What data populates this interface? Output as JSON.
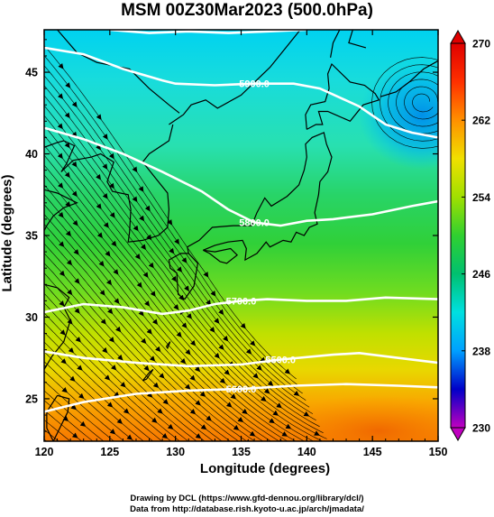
{
  "title": "MSM 00Z30Mar2023 (500.0hPa)",
  "x_axis": {
    "label": "Longitude (degrees)",
    "ticks": [
      "120",
      "125",
      "130",
      "135",
      "140",
      "145",
      "150"
    ],
    "range": [
      120,
      150
    ]
  },
  "y_axis": {
    "label": "Latitude  (degrees)",
    "ticks": [
      "25",
      "30",
      "35",
      "40",
      "45"
    ],
    "range": [
      22.4,
      47.6
    ]
  },
  "colorbar": {
    "ticks": [
      "230",
      "238",
      "246",
      "254",
      "262",
      "270"
    ],
    "range": [
      230,
      270
    ],
    "colors": [
      "#c000c0",
      "#0000c8",
      "#00a0ff",
      "#00e0e0",
      "#00c070",
      "#30d030",
      "#a0e000",
      "#f0e000",
      "#ff9000",
      "#ff3000",
      "#e00000"
    ]
  },
  "contours": [
    {
      "label": "5500.0",
      "lon": [
        120,
        123,
        127,
        131,
        135,
        138,
        142,
        144,
        146,
        150
      ],
      "lat": [
        27.9,
        27.5,
        27.2,
        27.0,
        27.1,
        27.4,
        27.7,
        27.8,
        27.6,
        27.2
      ]
    },
    {
      "label": "5600.0",
      "lon": [
        120,
        123,
        127,
        131,
        135,
        139,
        143,
        147,
        150
      ],
      "lat": [
        24.2,
        24.8,
        25.3,
        25.5,
        25.6,
        25.8,
        25.9,
        25.8,
        25.7
      ]
    },
    {
      "label": "5700.0",
      "lon": [
        120,
        123,
        126,
        129,
        131,
        133,
        135,
        137,
        140,
        143,
        146,
        150
      ],
      "lat": [
        30.3,
        30.8,
        30.6,
        30.2,
        30.4,
        30.8,
        31.0,
        31.1,
        31.0,
        31.0,
        31.2,
        31.1
      ]
    },
    {
      "label": "5800.0",
      "lon": [
        120,
        123,
        126,
        129,
        132,
        134,
        136,
        138,
        140,
        142,
        145,
        148,
        150
      ],
      "lat": [
        41.6,
        40.9,
        40.0,
        38.9,
        37.7,
        36.6,
        35.8,
        35.6,
        35.9,
        36.0,
        36.3,
        36.8,
        37.1
      ]
    },
    {
      "label": "5900.0",
      "lon": [
        120,
        123,
        126,
        129,
        130,
        133,
        136,
        139,
        141,
        144,
        146,
        148,
        150
      ],
      "lat": [
        46.5,
        46.1,
        45.2,
        44.5,
        44.3,
        44.2,
        44.3,
        44.3,
        44.0,
        42.9,
        41.8,
        41.3,
        41.0
      ]
    },
    {
      "label": "",
      "lon": [
        125,
        128,
        131,
        134,
        137,
        140
      ],
      "lat": [
        47.6,
        47.4,
        47.5,
        47.4,
        47.5,
        47.6
      ]
    }
  ],
  "fills": [
    {
      "lat": 47.6,
      "color": "#00d2f0"
    },
    {
      "lat": 44.5,
      "color": "#18dcdc"
    },
    {
      "lat": 40.5,
      "color": "#28e0b0"
    },
    {
      "lat": 37.5,
      "color": "#28d468"
    },
    {
      "lat": 34.5,
      "color": "#30d038"
    },
    {
      "lat": 31.5,
      "color": "#70dc20"
    },
    {
      "lat": 29.0,
      "color": "#c0e000"
    },
    {
      "lat": 26.8,
      "color": "#e8d800"
    },
    {
      "lat": 24.8,
      "color": "#f8a800"
    },
    {
      "lat": 22.4,
      "color": "#f87800"
    }
  ],
  "low_center": {
    "lon": 148.8,
    "lat": 43.2
  }
}
